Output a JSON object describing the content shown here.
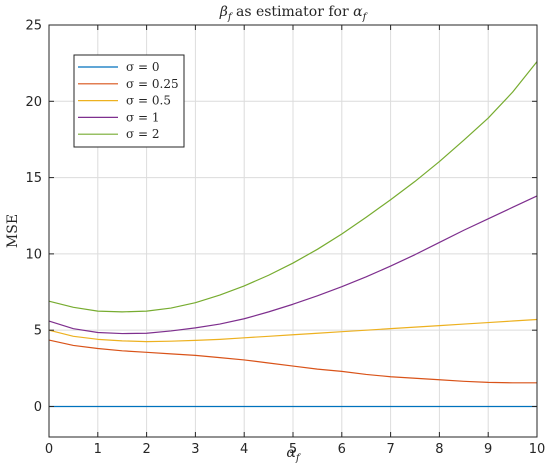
{
  "chart_data": {
    "type": "line",
    "title": {
      "prefix": "β",
      "prefix_sub": "f",
      "middle": " as estimator for ",
      "suffix": "α",
      "suffix_sub": "f"
    },
    "xlabel": {
      "main": "α",
      "sub": "f"
    },
    "ylabel": "MSE",
    "xlim": [
      0,
      10
    ],
    "ylim": [
      -2,
      25
    ],
    "xticks": [
      0,
      1,
      2,
      3,
      4,
      5,
      6,
      7,
      8,
      9,
      10
    ],
    "yticks": [
      0,
      5,
      10,
      15,
      20,
      25
    ],
    "grid": true,
    "legend_position": "top-left",
    "series": [
      {
        "name": "σ = 0",
        "color": "#0072BD",
        "x": [
          0,
          0.5,
          1,
          1.5,
          2,
          2.5,
          3,
          3.5,
          4,
          4.5,
          5,
          5.5,
          6,
          6.5,
          7,
          7.5,
          8,
          8.5,
          9,
          9.5,
          10
        ],
        "y": [
          0,
          0,
          0,
          0,
          0,
          0,
          0,
          0,
          0,
          0,
          0,
          0,
          0,
          0,
          0,
          0,
          0,
          0,
          0,
          0,
          0
        ]
      },
      {
        "name": "σ = 0.25",
        "color": "#D95319",
        "x": [
          0,
          0.5,
          1,
          1.5,
          2,
          2.5,
          3,
          3.5,
          4,
          4.5,
          5,
          5.5,
          6,
          6.5,
          7,
          7.5,
          8,
          8.5,
          9,
          9.5,
          10
        ],
        "y": [
          4.35,
          4.0,
          3.8,
          3.65,
          3.55,
          3.45,
          3.35,
          3.2,
          3.05,
          2.85,
          2.65,
          2.45,
          2.3,
          2.1,
          1.95,
          1.85,
          1.75,
          1.65,
          1.58,
          1.55,
          1.55
        ]
      },
      {
        "name": "σ = 0.5",
        "color": "#EDB120",
        "x": [
          0,
          0.5,
          1,
          1.5,
          2,
          2.5,
          3,
          3.5,
          4,
          4.5,
          5,
          5.5,
          6,
          6.5,
          7,
          7.5,
          8,
          8.5,
          9,
          9.5,
          10
        ],
        "y": [
          5.0,
          4.6,
          4.4,
          4.3,
          4.25,
          4.28,
          4.33,
          4.4,
          4.5,
          4.6,
          4.7,
          4.8,
          4.9,
          5.0,
          5.1,
          5.2,
          5.3,
          5.4,
          5.5,
          5.6,
          5.7
        ]
      },
      {
        "name": "σ = 1",
        "color": "#7E2F8E",
        "x": [
          0,
          0.5,
          1,
          1.5,
          2,
          2.5,
          3,
          3.5,
          4,
          4.5,
          5,
          5.5,
          6,
          6.5,
          7,
          7.5,
          8,
          8.5,
          9,
          9.5,
          10
        ],
        "y": [
          5.6,
          5.1,
          4.85,
          4.78,
          4.8,
          4.95,
          5.15,
          5.4,
          5.75,
          6.2,
          6.7,
          7.25,
          7.85,
          8.5,
          9.2,
          9.95,
          10.75,
          11.55,
          12.3,
          13.05,
          13.8
        ]
      },
      {
        "name": "σ = 2",
        "color": "#77AC30",
        "x": [
          0,
          0.5,
          1,
          1.5,
          2,
          2.5,
          3,
          3.5,
          4,
          4.5,
          5,
          5.5,
          6,
          6.5,
          7,
          7.5,
          8,
          8.5,
          9,
          9.5,
          10
        ],
        "y": [
          6.9,
          6.5,
          6.25,
          6.2,
          6.25,
          6.45,
          6.8,
          7.3,
          7.9,
          8.6,
          9.4,
          10.3,
          11.3,
          12.4,
          13.55,
          14.75,
          16.05,
          17.45,
          18.9,
          20.6,
          22.6
        ]
      }
    ]
  }
}
